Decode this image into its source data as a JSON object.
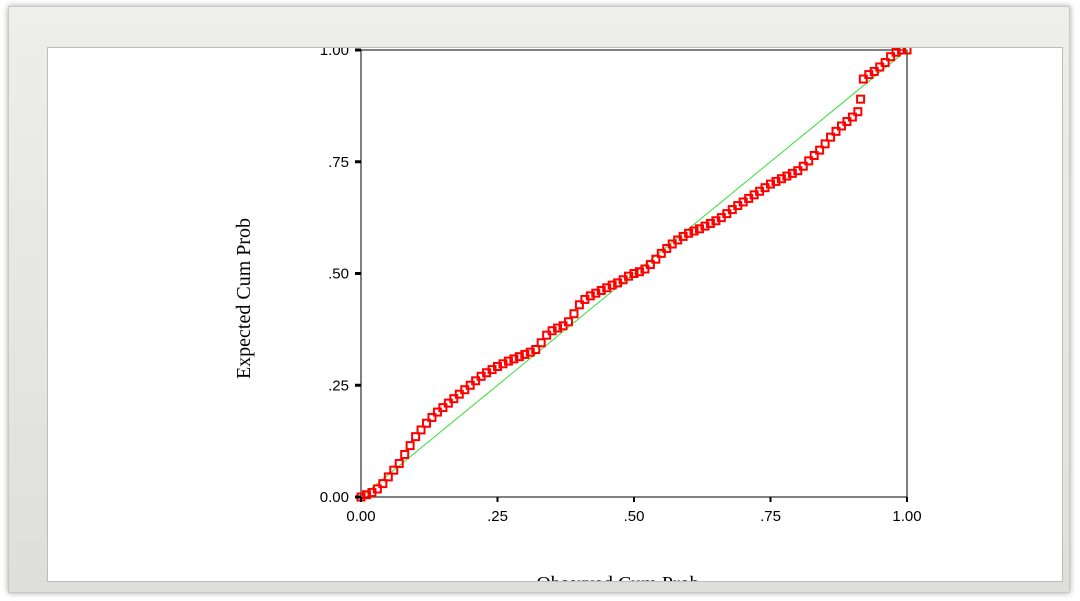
{
  "chart_data": {
    "type": "scatter",
    "title": "",
    "xlabel": "Observed Cum Prob",
    "ylabel": "Expected Cum Prob",
    "xlim": [
      0,
      1
    ],
    "ylim": [
      0,
      1
    ],
    "grid": false,
    "x_ticks": [
      {
        "value": 0,
        "label": "0.00"
      },
      {
        "value": 0.25,
        "label": ".25"
      },
      {
        "value": 0.5,
        "label": ".50"
      },
      {
        "value": 0.75,
        "label": ".75"
      },
      {
        "value": 1,
        "label": "1.00"
      }
    ],
    "y_ticks": [
      {
        "value": 0,
        "label": "0.00"
      },
      {
        "value": 0.25,
        "label": ".25"
      },
      {
        "value": 0.5,
        "label": ".50"
      },
      {
        "value": 0.75,
        "label": ".75"
      },
      {
        "value": 1,
        "label": "1.00"
      }
    ],
    "reference_line": {
      "from": [
        0,
        0
      ],
      "to": [
        1,
        1
      ],
      "color": "#33dd33"
    },
    "series": [
      {
        "marker": "square",
        "color": "#ff0000",
        "points": [
          [
            0.0,
            0.0
          ],
          [
            0.01,
            0.005
          ],
          [
            0.02,
            0.01
          ],
          [
            0.03,
            0.018
          ],
          [
            0.04,
            0.03
          ],
          [
            0.05,
            0.045
          ],
          [
            0.06,
            0.06
          ],
          [
            0.07,
            0.075
          ],
          [
            0.08,
            0.095
          ],
          [
            0.09,
            0.115
          ],
          [
            0.1,
            0.135
          ],
          [
            0.11,
            0.15
          ],
          [
            0.12,
            0.165
          ],
          [
            0.13,
            0.178
          ],
          [
            0.14,
            0.19
          ],
          [
            0.15,
            0.2
          ],
          [
            0.16,
            0.21
          ],
          [
            0.17,
            0.22
          ],
          [
            0.18,
            0.23
          ],
          [
            0.19,
            0.24
          ],
          [
            0.2,
            0.25
          ],
          [
            0.21,
            0.26
          ],
          [
            0.22,
            0.27
          ],
          [
            0.23,
            0.278
          ],
          [
            0.24,
            0.285
          ],
          [
            0.25,
            0.292
          ],
          [
            0.26,
            0.298
          ],
          [
            0.27,
            0.304
          ],
          [
            0.28,
            0.309
          ],
          [
            0.29,
            0.314
          ],
          [
            0.3,
            0.319
          ],
          [
            0.31,
            0.324
          ],
          [
            0.32,
            0.33
          ],
          [
            0.33,
            0.345
          ],
          [
            0.34,
            0.362
          ],
          [
            0.35,
            0.372
          ],
          [
            0.36,
            0.378
          ],
          [
            0.37,
            0.383
          ],
          [
            0.38,
            0.392
          ],
          [
            0.39,
            0.41
          ],
          [
            0.4,
            0.43
          ],
          [
            0.41,
            0.442
          ],
          [
            0.42,
            0.45
          ],
          [
            0.43,
            0.456
          ],
          [
            0.44,
            0.462
          ],
          [
            0.45,
            0.468
          ],
          [
            0.46,
            0.474
          ],
          [
            0.47,
            0.479
          ],
          [
            0.48,
            0.486
          ],
          [
            0.49,
            0.494
          ],
          [
            0.5,
            0.5
          ],
          [
            0.51,
            0.504
          ],
          [
            0.52,
            0.51
          ],
          [
            0.53,
            0.52
          ],
          [
            0.54,
            0.532
          ],
          [
            0.55,
            0.545
          ],
          [
            0.56,
            0.556
          ],
          [
            0.57,
            0.566
          ],
          [
            0.58,
            0.575
          ],
          [
            0.59,
            0.583
          ],
          [
            0.6,
            0.59
          ],
          [
            0.61,
            0.595
          ],
          [
            0.62,
            0.6
          ],
          [
            0.63,
            0.606
          ],
          [
            0.64,
            0.612
          ],
          [
            0.65,
            0.618
          ],
          [
            0.66,
            0.625
          ],
          [
            0.67,
            0.634
          ],
          [
            0.68,
            0.643
          ],
          [
            0.69,
            0.652
          ],
          [
            0.7,
            0.66
          ],
          [
            0.71,
            0.668
          ],
          [
            0.72,
            0.676
          ],
          [
            0.73,
            0.684
          ],
          [
            0.74,
            0.692
          ],
          [
            0.75,
            0.7
          ],
          [
            0.76,
            0.706
          ],
          [
            0.77,
            0.712
          ],
          [
            0.78,
            0.718
          ],
          [
            0.79,
            0.724
          ],
          [
            0.8,
            0.73
          ],
          [
            0.81,
            0.74
          ],
          [
            0.82,
            0.752
          ],
          [
            0.83,
            0.764
          ],
          [
            0.84,
            0.776
          ],
          [
            0.85,
            0.79
          ],
          [
            0.86,
            0.805
          ],
          [
            0.87,
            0.818
          ],
          [
            0.88,
            0.83
          ],
          [
            0.89,
            0.84
          ],
          [
            0.9,
            0.85
          ],
          [
            0.91,
            0.862
          ],
          [
            0.915,
            0.89
          ],
          [
            0.92,
            0.935
          ],
          [
            0.93,
            0.945
          ],
          [
            0.94,
            0.952
          ],
          [
            0.95,
            0.962
          ],
          [
            0.96,
            0.972
          ],
          [
            0.97,
            0.985
          ],
          [
            0.98,
            0.995
          ],
          [
            0.99,
            1.0
          ],
          [
            1.0,
            1.0
          ]
        ]
      }
    ]
  }
}
